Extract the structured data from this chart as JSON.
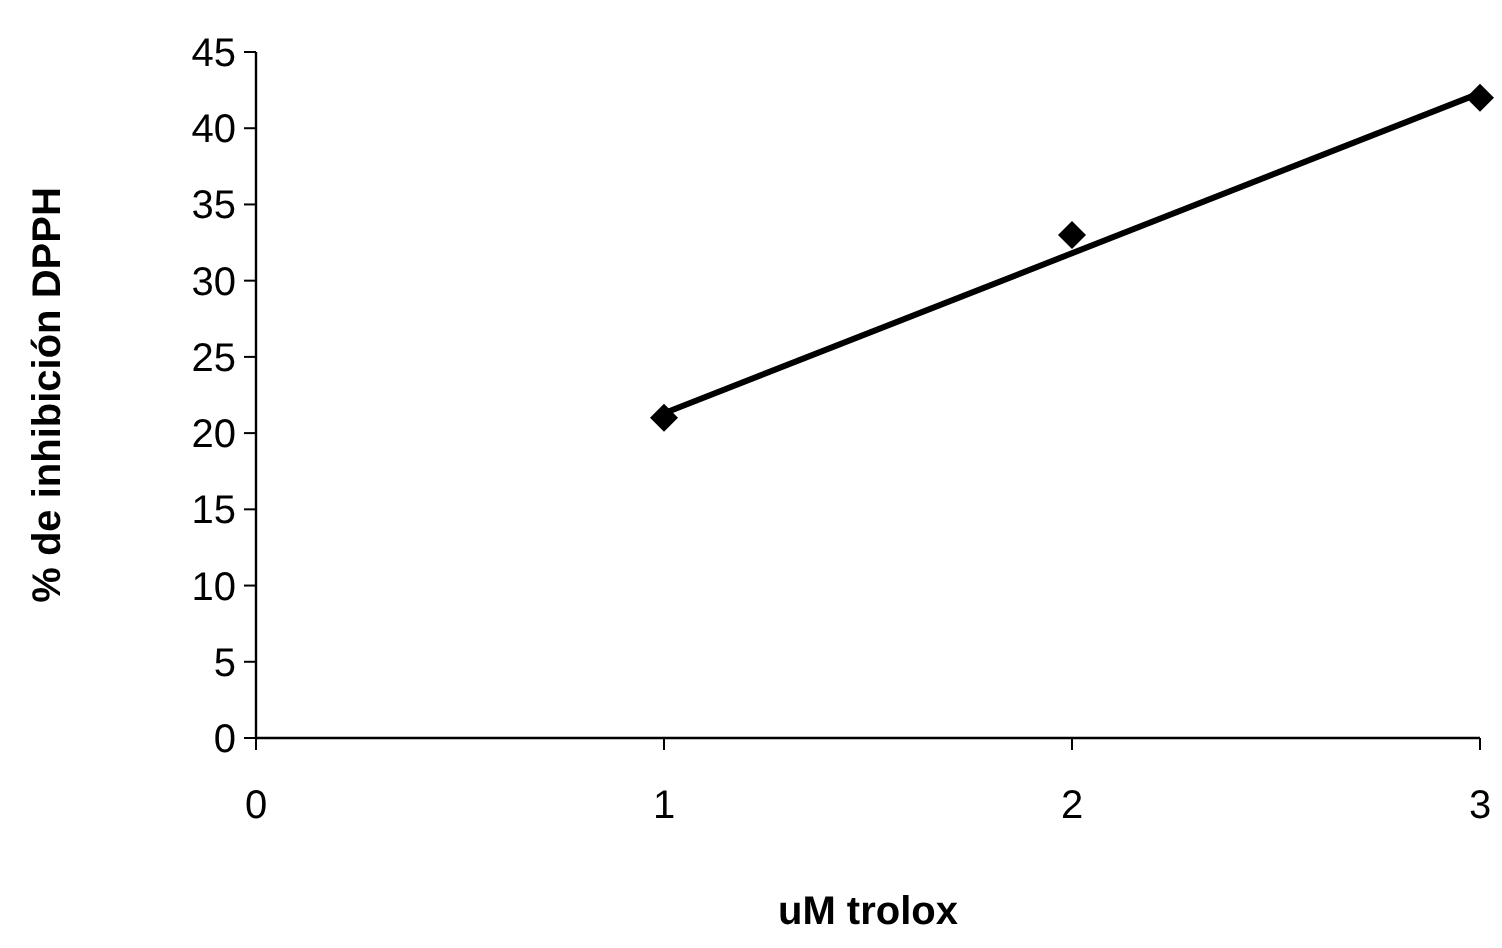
{
  "chart_data": {
    "type": "scatter",
    "xlabel": "uM trolox",
    "ylabel": "% de inhibición DPPH",
    "xlim": [
      0,
      3
    ],
    "xticks": [
      0,
      1,
      2,
      3
    ],
    "ylim": [
      0,
      45
    ],
    "yticks": [
      0,
      5,
      10,
      15,
      20,
      25,
      30,
      35,
      40,
      45
    ],
    "grid": false,
    "marker": "diamond",
    "series": [
      {
        "color": "#000000",
        "x": [
          1,
          2,
          3
        ],
        "values": [
          21,
          33,
          42
        ]
      },
      {
        "type": "line",
        "color": "#000000",
        "x": [
          1,
          3
        ],
        "values": [
          21.3,
          42.3
        ],
        "marker": "none",
        "line_style": "solid"
      }
    ]
  }
}
